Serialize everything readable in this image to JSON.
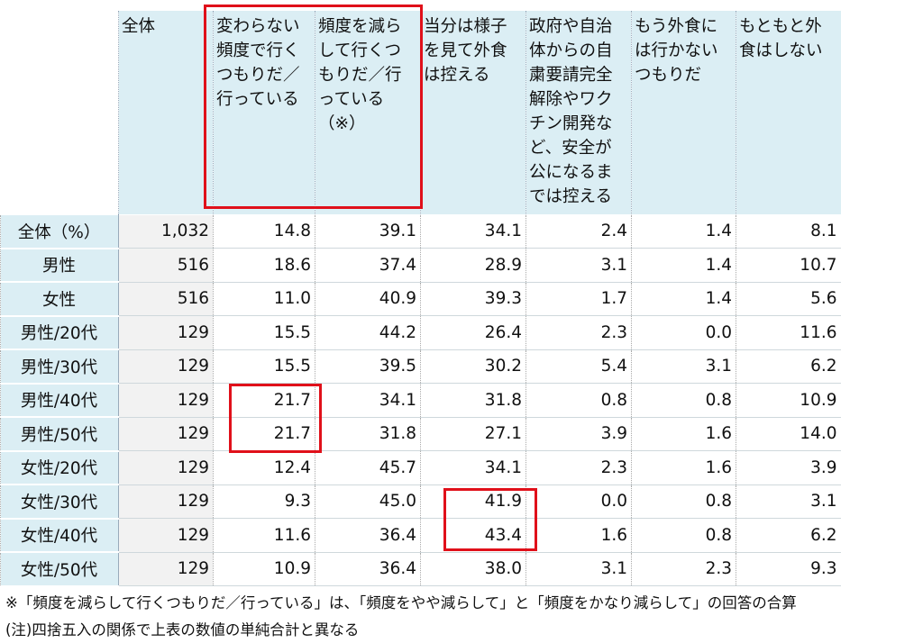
{
  "table": {
    "header": [
      "全体",
      "変わらない頻度で行くつもりだ／行っている",
      "頻度を減らして行くつもりだ／行っている（※）",
      "当分は様子を見て外食は控える",
      "政府や自治体からの自粛要請完全解除やワクチン開発など、安全が公になるまでは控える",
      "もう外食には行かないつもりだ",
      "もともと外食はしない"
    ],
    "rows": [
      [
        "全体（%）",
        "1,032",
        "14.8",
        "39.1",
        "34.1",
        "2.4",
        "1.4",
        "8.1"
      ],
      [
        "男性",
        "516",
        "18.6",
        "37.4",
        "28.9",
        "3.1",
        "1.4",
        "10.7"
      ],
      [
        "女性",
        "516",
        "11.0",
        "40.9",
        "39.3",
        "1.7",
        "1.4",
        "5.6"
      ],
      [
        "男性/20代",
        "129",
        "15.5",
        "44.2",
        "26.4",
        "2.3",
        "0.0",
        "11.6"
      ],
      [
        "男性/30代",
        "129",
        "15.5",
        "39.5",
        "30.2",
        "5.4",
        "3.1",
        "6.2"
      ],
      [
        "男性/40代",
        "129",
        "21.7",
        "34.1",
        "31.8",
        "0.8",
        "0.8",
        "10.9"
      ],
      [
        "男性/50代",
        "129",
        "21.7",
        "31.8",
        "27.1",
        "3.9",
        "1.6",
        "14.0"
      ],
      [
        "女性/20代",
        "129",
        "12.4",
        "45.7",
        "34.1",
        "2.3",
        "1.6",
        "3.9"
      ],
      [
        "女性/30代",
        "129",
        "9.3",
        "45.0",
        "41.9",
        "0.0",
        "0.8",
        "3.1"
      ],
      [
        "女性/40代",
        "129",
        "11.6",
        "36.4",
        "43.4",
        "1.6",
        "0.8",
        "6.2"
      ],
      [
        "女性/50代",
        "129",
        "10.9",
        "36.4",
        "38.0",
        "3.1",
        "2.3",
        "9.3"
      ]
    ]
  },
  "notes": [
    "※「頻度を減らして行くつもりだ／行っている」は、「頻度をやや減らして」と「頻度をかなり減らして」の回答の合算",
    "(注)四捨五入の関係で上表の数値の単純合計と異なる"
  ]
}
